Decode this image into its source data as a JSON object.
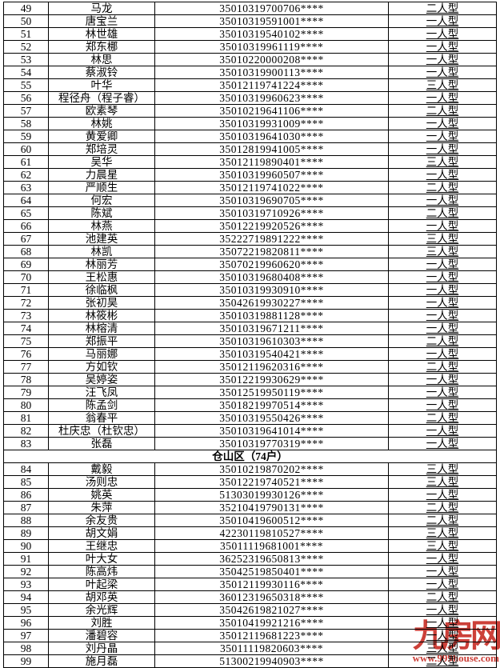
{
  "table": {
    "rows": [
      {
        "no": "49",
        "name": "马龙",
        "id": "35010319700706****",
        "type": "二人型"
      },
      {
        "no": "50",
        "name": "唐宝兰",
        "id": "35010319591001****",
        "type": "一人型"
      },
      {
        "no": "51",
        "name": "林世雄",
        "id": "35010319540102****",
        "type": "一人型"
      },
      {
        "no": "52",
        "name": "郑东梛",
        "id": "35010319961119****",
        "type": "一人型"
      },
      {
        "no": "53",
        "name": "林思",
        "id": "35010220000208****",
        "type": "一人型"
      },
      {
        "no": "54",
        "name": "蔡淑铃",
        "id": "35010319900113****",
        "type": "一人型"
      },
      {
        "no": "55",
        "name": "叶华",
        "id": "35012119741224****",
        "type": "三人型"
      },
      {
        "no": "56",
        "name": "程径舟（程子睿）",
        "id": "35010319960623****",
        "type": "一人型"
      },
      {
        "no": "57",
        "name": "欧素琴",
        "id": "35010219641106****",
        "type": "二人型"
      },
      {
        "no": "58",
        "name": "林姚",
        "id": "35010319931009****",
        "type": "一人型"
      },
      {
        "no": "59",
        "name": "黄爱卿",
        "id": "35010319641030****",
        "type": "一人型"
      },
      {
        "no": "60",
        "name": "郑培灵",
        "id": "35012819941005****",
        "type": "一人型"
      },
      {
        "no": "61",
        "name": "吴华",
        "id": "35012119890401****",
        "type": "三人型"
      },
      {
        "no": "62",
        "name": "力晨星",
        "id": "35010319960507****",
        "type": "一人型"
      },
      {
        "no": "63",
        "name": "严顺生",
        "id": "35012119741022****",
        "type": "二人型"
      },
      {
        "no": "64",
        "name": "何宏",
        "id": "35010319690705****",
        "type": "一人型"
      },
      {
        "no": "65",
        "name": "陈斌",
        "id": "35010319710926****",
        "type": "二人型"
      },
      {
        "no": "66",
        "name": "林燕",
        "id": "35012219920526****",
        "type": "一人型"
      },
      {
        "no": "67",
        "name": "池建英",
        "id": "35222719891222****",
        "type": "三人型"
      },
      {
        "no": "68",
        "name": "林凯",
        "id": "35072219820811****",
        "type": "三人型"
      },
      {
        "no": "69",
        "name": "林丽芳",
        "id": "35070219960620****",
        "type": "一人型"
      },
      {
        "no": "70",
        "name": "王松惠",
        "id": "35010319680408****",
        "type": "一人型"
      },
      {
        "no": "71",
        "name": "徐临枫",
        "id": "35010319930910****",
        "type": "一人型"
      },
      {
        "no": "72",
        "name": "张初昊",
        "id": "35042619930227****",
        "type": "一人型"
      },
      {
        "no": "73",
        "name": "林筱彬",
        "id": "35010319881128****",
        "type": "一人型"
      },
      {
        "no": "74",
        "name": "林榕清",
        "id": "35010319671211****",
        "type": "一人型"
      },
      {
        "no": "75",
        "name": "郑振平",
        "id": "35010319610303****",
        "type": "二人型"
      },
      {
        "no": "76",
        "name": "马丽娜",
        "id": "35010319540421****",
        "type": "一人型"
      },
      {
        "no": "77",
        "name": "方如钦",
        "id": "35012119620316****",
        "type": "二人型"
      },
      {
        "no": "78",
        "name": "吴婷姿",
        "id": "35012219930629****",
        "type": "一人型"
      },
      {
        "no": "79",
        "name": "汪飞凤",
        "id": "35012519950119****",
        "type": "一人型"
      },
      {
        "no": "80",
        "name": "陈孟剑",
        "id": "35018219970514****",
        "type": "一人型"
      },
      {
        "no": "81",
        "name": "翁春平",
        "id": "35010319550426****",
        "type": "二人型"
      },
      {
        "no": "82",
        "name": "杜庆忠（杜钦忠）",
        "id": "35010319641014****",
        "type": "一人型"
      },
      {
        "no": "83",
        "name": "张磊",
        "id": "35010319770319****",
        "type": "一人型"
      },
      {
        "label": "仓山区（74户）"
      },
      {
        "no": "84",
        "name": "戴毅",
        "id": "35010219870202****",
        "type": "三人型"
      },
      {
        "no": "85",
        "name": "汤则忠",
        "id": "35012219740521****",
        "type": "三人型"
      },
      {
        "no": "86",
        "name": "姚英",
        "id": "51303019930126****",
        "type": "一人型"
      },
      {
        "no": "87",
        "name": "朱萍",
        "id": "35210419790131****",
        "type": "二人型"
      },
      {
        "no": "88",
        "name": "余友贵",
        "id": "35010419600512****",
        "type": "二人型"
      },
      {
        "no": "89",
        "name": "胡文娟",
        "id": "42230119810527****",
        "type": "三人型"
      },
      {
        "no": "90",
        "name": "王继忠",
        "id": "35011119681001****",
        "type": "三人型"
      },
      {
        "no": "91",
        "name": "叶大女",
        "id": "36252319650813****",
        "type": "一人型"
      },
      {
        "no": "92",
        "name": "陈高炜",
        "id": "35042519850401****",
        "type": "一人型"
      },
      {
        "no": "93",
        "name": "叶起梁",
        "id": "35012119930116****",
        "type": "一人型"
      },
      {
        "no": "94",
        "name": "胡邓英",
        "id": "36012319650318****",
        "type": "二人型"
      },
      {
        "no": "95",
        "name": "余光辉",
        "id": "35042619821027****",
        "type": "一人型"
      },
      {
        "no": "96",
        "name": "刘胜",
        "id": "35010419921216****",
        "type": "一人型"
      },
      {
        "no": "97",
        "name": "潘碧容",
        "id": "35012119681223****",
        "type": "一人型"
      },
      {
        "no": "98",
        "name": "刘丹晶",
        "id": "35011119820603****",
        "type": "三人型"
      },
      {
        "no": "99",
        "name": "施月磊",
        "id": "51300219940903****",
        "type": "二人型"
      }
    ]
  },
  "watermark": {
    "brand": "九房网",
    "url": "www.999house.com",
    "color": "#c5251d"
  }
}
